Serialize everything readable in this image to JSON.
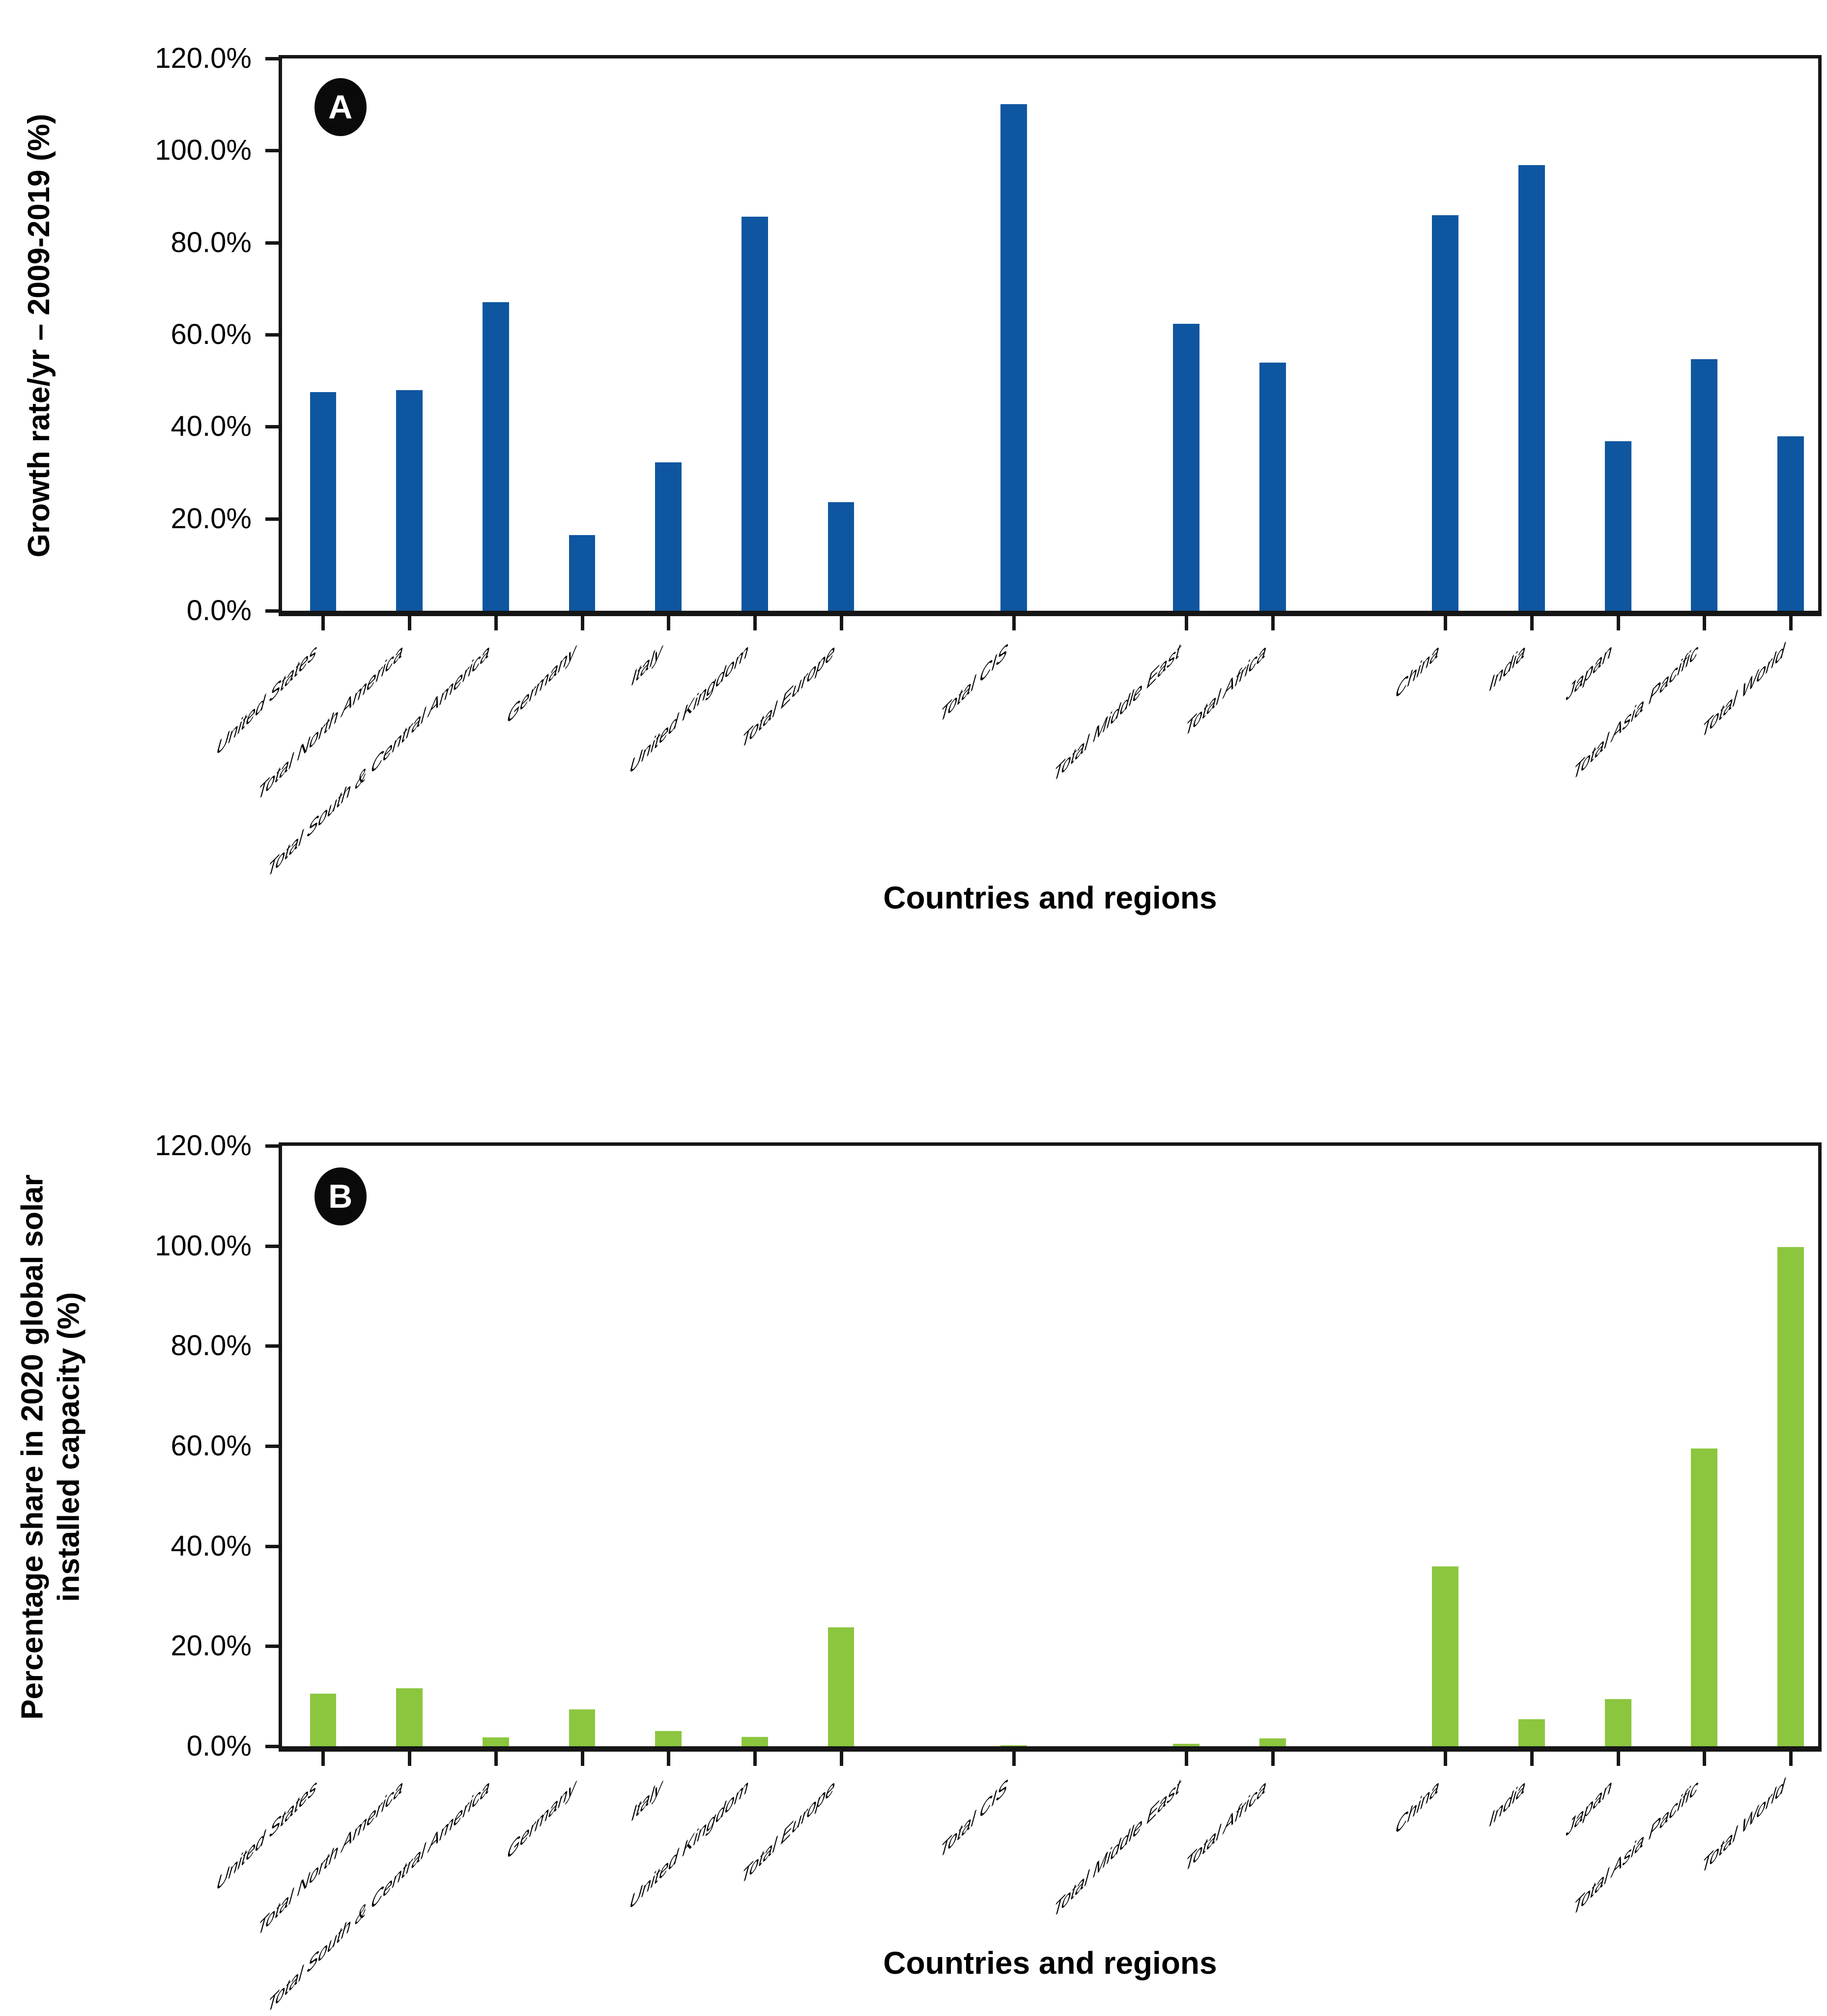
{
  "figure": {
    "background": "#ffffff",
    "axis_color": "#161616",
    "panel_badge_bg": "#0a0a0a",
    "panel_badge_fg": "#ffffff"
  },
  "chart_data": [
    {
      "type": "bar",
      "panel": "A",
      "ylabel": "Growth rate/yr – 2009-2019 (%)",
      "ylabel_lines": [
        "Growth rate/yr – 2009-2019 (%)"
      ],
      "xlabel": "Countries and regions",
      "bar_color": "#0F56A0",
      "ylim": [
        0,
        120
      ],
      "grid": false,
      "legend": "none",
      "ytick_labels": [
        "0.0%",
        "20.0%",
        "40.0%",
        "60.0%",
        "80.0%",
        "100.0%",
        "120.0%"
      ],
      "ytick_values": [
        0,
        20,
        40,
        60,
        80,
        100,
        120
      ],
      "categories": [
        "United States",
        "Total North America",
        "Total South & Central America",
        "Germany",
        "Italy",
        "United Kingdom",
        "Total Europe",
        "Total CIS",
        "Total Middle East",
        "Total Africa",
        "China",
        "India",
        "Japan",
        "Total Asia Pacific",
        "Total World"
      ],
      "slots": [
        1,
        2,
        3,
        4,
        5,
        6,
        7,
        9,
        11,
        12,
        14,
        15,
        16,
        17,
        18
      ],
      "values": [
        47.5,
        47.9,
        67.1,
        16.4,
        32.2,
        85.6,
        23.6,
        110.1,
        62.4,
        53.9,
        85.9,
        96.8,
        36.8,
        54.7,
        37.9
      ]
    },
    {
      "type": "bar",
      "panel": "B",
      "ylabel": "Percentage share in 2020 global solar installed capacity (%)",
      "ylabel_lines": [
        "Percentage share in 2020 global solar",
        "installed capacity (%)"
      ],
      "xlabel": "Countries and regions",
      "bar_color": "#8CC63F",
      "ylim": [
        0,
        120
      ],
      "grid": false,
      "legend": "none",
      "ytick_labels": [
        "0.0%",
        "20.0%",
        "40.0%",
        "60.0%",
        "80.0%",
        "100.0%",
        "120.0%"
      ],
      "ytick_values": [
        0,
        20,
        40,
        60,
        80,
        100,
        120
      ],
      "categories": [
        "United States",
        "Total North America",
        "Total South & Central America",
        "Germany",
        "Italy",
        "United Kingdom",
        "Total Europe",
        "Total CIS",
        "Total Middle East",
        "Total Africa",
        "China",
        "India",
        "Japan",
        "Total Asia Pacific",
        "Total World"
      ],
      "slots": [
        1,
        2,
        3,
        4,
        5,
        6,
        7,
        9,
        11,
        12,
        14,
        15,
        16,
        17,
        18
      ],
      "values": [
        10.5,
        11.6,
        1.8,
        7.4,
        3.0,
        1.9,
        23.8,
        0.2,
        0.5,
        1.6,
        35.9,
        5.4,
        9.4,
        59.5,
        99.8
      ]
    }
  ],
  "layout": {
    "first_tick_pct": 2.67,
    "slot_step_pct": 5.62,
    "bar_width_pct": 1.72
  }
}
